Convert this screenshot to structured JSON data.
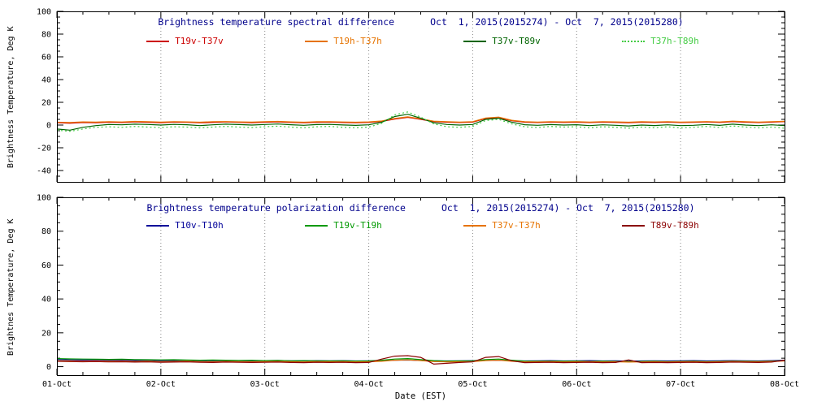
{
  "chart_data": [
    {
      "type": "line",
      "title": "Brightness temperature spectral difference",
      "date_label": "Oct  1, 2015(2015274) - Oct  7, 2015(2015280)",
      "ylabel": "Brightness Temperature, Deg K",
      "xlabel": "",
      "ylim": [
        -50,
        100
      ],
      "yticks": [
        100,
        80,
        60,
        40,
        20,
        0,
        -20,
        -40
      ],
      "xlim": [
        0,
        7
      ],
      "x_step": 0.125,
      "x_tick_labels": [
        "01-Oct",
        "02-Oct",
        "03-Oct",
        "04-Oct",
        "05-Oct",
        "06-Oct",
        "07-Oct",
        "08-Oct"
      ],
      "show_x_labels": false,
      "grid": "vertical-dotted",
      "legend_position": "top-inside",
      "title_color": "#00008b",
      "series": [
        {
          "name": "T19v-T37v",
          "color": "#cc0000",
          "style": "solid",
          "values": [
            2.0,
            1.6,
            2.2,
            2.0,
            2.5,
            2.2,
            2.8,
            2.4,
            2.1,
            2.6,
            2.4,
            2.0,
            2.3,
            2.7,
            2.4,
            2.1,
            2.5,
            2.8,
            2.3,
            2.0,
            2.4,
            2.6,
            2.2,
            2.0,
            2.3,
            3.2,
            5.2,
            6.8,
            5.0,
            3.0,
            2.5,
            2.2,
            2.6,
            5.8,
            6.5,
            3.8,
            2.5,
            2.2,
            2.6,
            2.3,
            2.5,
            2.2,
            2.6,
            2.3,
            2.1,
            2.5,
            2.3,
            2.6,
            2.2,
            2.4,
            2.7,
            2.3,
            3.0,
            2.5,
            2.2,
            2.6,
            3.0
          ]
        },
        {
          "name": "T19h-T37h",
          "color": "#e67300",
          "style": "solid",
          "values": [
            2.5,
            2.2,
            2.8,
            2.6,
            3.0,
            2.7,
            3.2,
            2.9,
            2.6,
            3.0,
            2.8,
            2.5,
            2.9,
            3.1,
            2.8,
            2.6,
            3.0,
            3.2,
            2.8,
            2.5,
            2.9,
            3.0,
            2.7,
            2.5,
            2.8,
            3.6,
            5.8,
            7.2,
            5.5,
            3.4,
            2.9,
            2.6,
            3.0,
            6.2,
            7.0,
            4.2,
            2.9,
            2.6,
            3.0,
            2.8,
            2.9,
            2.6,
            3.0,
            2.8,
            2.5,
            2.9,
            2.7,
            3.0,
            2.6,
            2.8,
            3.1,
            2.7,
            3.4,
            2.9,
            2.6,
            3.0,
            3.3
          ]
        },
        {
          "name": "T37v-T89v",
          "color": "#006400",
          "style": "solid",
          "values": [
            -3.5,
            -4.5,
            -2.0,
            -0.5,
            0.5,
            0.2,
            0.8,
            0.5,
            0.0,
            0.6,
            0.3,
            -0.5,
            0.2,
            0.8,
            0.4,
            0.0,
            0.5,
            0.9,
            0.3,
            -0.2,
            0.4,
            0.6,
            0.1,
            -0.3,
            0.2,
            2.5,
            7.5,
            9.5,
            6.0,
            2.0,
            0.5,
            0.0,
            0.5,
            5.0,
            6.0,
            2.5,
            0.3,
            -0.2,
            0.4,
            0.0,
            0.3,
            -0.5,
            0.2,
            -0.2,
            -0.8,
            0.0,
            -0.4,
            0.2,
            -0.5,
            -0.2,
            0.5,
            -0.3,
            0.8,
            0.0,
            -0.5,
            0.2,
            -0.5
          ]
        },
        {
          "name": "T37h-T89h",
          "color": "#44cc44",
          "style": "dotted",
          "values": [
            -4.5,
            -5.5,
            -3.5,
            -2.0,
            -1.5,
            -2.0,
            -1.2,
            -1.8,
            -2.2,
            -1.5,
            -1.8,
            -2.5,
            -1.8,
            -1.2,
            -1.8,
            -2.2,
            -1.5,
            -1.0,
            -1.8,
            -2.5,
            -1.5,
            -1.2,
            -2.0,
            -2.5,
            -1.8,
            1.5,
            9.0,
            11.5,
            7.0,
            1.0,
            -1.5,
            -2.0,
            -1.2,
            4.0,
            5.0,
            1.0,
            -1.5,
            -2.2,
            -1.2,
            -1.8,
            -1.5,
            -2.5,
            -1.5,
            -2.0,
            -2.8,
            -1.8,
            -2.4,
            -1.5,
            -2.6,
            -2.0,
            -1.2,
            -2.2,
            -0.8,
            -1.8,
            -2.5,
            -1.8,
            -2.8
          ]
        }
      ]
    },
    {
      "type": "line",
      "title": "Brightness temperature polarization difference",
      "date_label": "Oct  1, 2015(2015274) - Oct  7, 2015(2015280)",
      "ylabel": "Brightnes Temperature, Deg K",
      "xlabel": "Date (EST)",
      "ylim": [
        -5,
        100
      ],
      "yticks": [
        100,
        80,
        60,
        40,
        20,
        0
      ],
      "xlim": [
        0,
        7
      ],
      "x_step": 0.125,
      "x_tick_labels": [
        "01-Oct",
        "02-Oct",
        "03-Oct",
        "04-Oct",
        "05-Oct",
        "06-Oct",
        "07-Oct",
        "08-Oct"
      ],
      "show_x_labels": true,
      "grid": "vertical-dotted",
      "legend_position": "top-inside",
      "title_color": "#00008b",
      "series": [
        {
          "name": "T10v-T10h",
          "color": "#000099",
          "style": "solid",
          "values": [
            4.2,
            4.0,
            3.9,
            4.0,
            3.8,
            3.9,
            3.7,
            3.8,
            3.6,
            3.7,
            3.8,
            3.6,
            3.5,
            3.7,
            3.6,
            3.5,
            3.6,
            3.7,
            3.5,
            3.4,
            3.6,
            3.5,
            3.6,
            3.4,
            3.5,
            3.6,
            3.8,
            3.9,
            3.7,
            3.5,
            3.4,
            3.5,
            3.6,
            3.7,
            3.8,
            3.6,
            3.4,
            3.5,
            3.6,
            3.4,
            3.5,
            3.6,
            3.4,
            3.5,
            3.3,
            3.4,
            3.5,
            3.4,
            3.5,
            3.6,
            3.4,
            3.5,
            3.6,
            3.5,
            3.4,
            3.6,
            3.8
          ]
        },
        {
          "name": "T19v-T19h",
          "color": "#009900",
          "style": "solid",
          "values": [
            4.8,
            4.6,
            4.5,
            4.4,
            4.3,
            4.4,
            4.2,
            4.1,
            4.0,
            4.1,
            3.9,
            3.8,
            3.9,
            3.8,
            3.7,
            3.8,
            3.6,
            3.7,
            3.5,
            3.6,
            3.5,
            3.4,
            3.5,
            3.3,
            3.4,
            3.8,
            4.5,
            4.8,
            4.2,
            3.6,
            3.3,
            3.4,
            3.5,
            4.2,
            4.5,
            3.8,
            3.3,
            3.2,
            3.3,
            3.2,
            3.3,
            3.1,
            3.2,
            3.1,
            3.0,
            3.1,
            3.2,
            3.0,
            3.1,
            3.2,
            3.0,
            3.1,
            3.3,
            3.2,
            3.1,
            3.3,
            3.6
          ]
        },
        {
          "name": "T37v-T37h",
          "color": "#e67300",
          "style": "solid",
          "values": [
            3.5,
            3.4,
            3.3,
            3.4,
            3.2,
            3.3,
            3.1,
            3.2,
            3.0,
            3.1,
            3.2,
            3.0,
            2.9,
            3.1,
            3.0,
            2.9,
            3.0,
            3.1,
            2.9,
            2.8,
            3.0,
            2.9,
            3.0,
            2.8,
            2.9,
            3.2,
            3.8,
            4.0,
            3.6,
            3.0,
            2.8,
            2.9,
            3.0,
            3.6,
            3.8,
            3.2,
            2.8,
            2.9,
            3.0,
            2.8,
            2.9,
            3.0,
            2.8,
            2.9,
            2.7,
            2.8,
            2.9,
            2.8,
            2.9,
            3.0,
            2.8,
            2.9,
            3.1,
            3.0,
            2.9,
            3.1,
            3.4
          ]
        },
        {
          "name": "T89v-T89h",
          "color": "#8b0000",
          "style": "solid",
          "values": [
            3.2,
            3.0,
            2.9,
            3.0,
            2.8,
            2.9,
            2.7,
            2.8,
            2.6,
            2.7,
            2.8,
            2.6,
            2.5,
            2.7,
            2.6,
            2.5,
            2.6,
            2.7,
            2.5,
            2.4,
            2.6,
            2.5,
            2.6,
            2.4,
            2.5,
            4.5,
            6.2,
            6.5,
            5.5,
            1.5,
            2.0,
            2.5,
            2.8,
            5.5,
            6.0,
            3.5,
            2.4,
            2.5,
            2.6,
            2.4,
            2.5,
            2.6,
            2.4,
            2.5,
            4.0,
            2.4,
            2.5,
            2.4,
            2.5,
            2.6,
            2.4,
            2.5,
            2.7,
            2.6,
            2.5,
            2.7,
            3.8
          ]
        }
      ]
    }
  ]
}
